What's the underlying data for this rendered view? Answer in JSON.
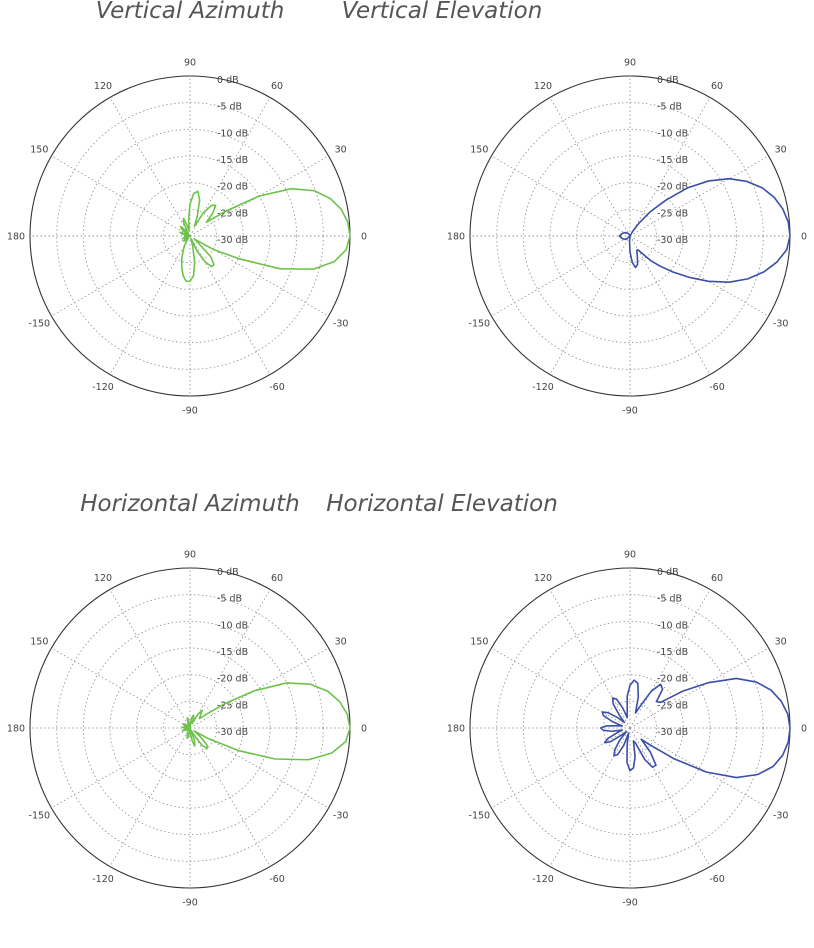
{
  "chart_data": [
    {
      "type": "polar",
      "title": "Vertical Azimuth",
      "color": "#6cc24a",
      "angle_ticks": [
        "0",
        "30",
        "60",
        "90",
        "120",
        "150",
        "180",
        "-150",
        "-120",
        "-90",
        "-60",
        "-30"
      ],
      "radial_ticks": [
        "0 dB",
        "-5 dB",
        "-10 dB",
        "-15 dB",
        "-20 dB",
        "-25 dB",
        "-30 dB"
      ],
      "r_range_db": [
        -30,
        0
      ],
      "series": [
        {
          "angle_deg": [
            0,
            5,
            10,
            15,
            20,
            25,
            30,
            35,
            40,
            45,
            50,
            55,
            60,
            65,
            70,
            75,
            80,
            85,
            90,
            95,
            100,
            105,
            110,
            115,
            120,
            125,
            130,
            135,
            140,
            145,
            150,
            155,
            160,
            165,
            170,
            175,
            180,
            -175,
            -170,
            -165,
            -160,
            -155,
            -150,
            -145,
            -140,
            -135,
            -130,
            -125,
            -120,
            -115,
            -110,
            -105,
            -100,
            -95,
            -90,
            -85,
            -80,
            -75,
            -70,
            -65,
            -60,
            -55,
            -50,
            -45,
            -40,
            -35,
            -30,
            -25,
            -20,
            -15,
            -10,
            -5,
            0
          ],
          "gain_db": [
            0,
            -0.3,
            -1.2,
            -2.8,
            -5.2,
            -9,
            -15,
            -22,
            -26,
            -24,
            -22.5,
            -23,
            -25,
            -28,
            -26,
            -23,
            -21.5,
            -22,
            -24,
            -27,
            -29,
            -28,
            -26.5,
            -27,
            -29,
            -29.5,
            -28.5,
            -27.5,
            -28,
            -29.5,
            -30,
            -29,
            -28,
            -28.5,
            -29.5,
            -30,
            -29,
            -29.5,
            -30,
            -29,
            -28.5,
            -29,
            -29.5,
            -29,
            -28.5,
            -29,
            -29.5,
            -29,
            -28,
            -27,
            -25.5,
            -24,
            -22.5,
            -21.5,
            -21.5,
            -22.5,
            -25,
            -28,
            -29.5,
            -27,
            -24.5,
            -23,
            -23,
            -24.5,
            -28,
            -29,
            -25,
            -20,
            -12,
            -6,
            -2.5,
            -0.6,
            0
          ]
        }
      ]
    },
    {
      "type": "polar",
      "title": "Vertical Elevation",
      "color": "#3a4fa8",
      "angle_ticks": [
        "0",
        "30",
        "60",
        "90",
        "120",
        "150",
        "180",
        "-150",
        "-120",
        "-90",
        "-60",
        "-30"
      ],
      "radial_ticks": [
        "0 dB",
        "-5 dB",
        "-10 dB",
        "-15 dB",
        "-20 dB",
        "-25 dB",
        "-30 dB"
      ],
      "r_range_db": [
        -30,
        0
      ],
      "series": [
        {
          "angle_deg": [
            0,
            5,
            10,
            15,
            20,
            25,
            30,
            35,
            40,
            45,
            50,
            55,
            60,
            65,
            70,
            75,
            80,
            85,
            90,
            95,
            100,
            110,
            120,
            140,
            160,
            180,
            -160,
            -140,
            -120,
            -110,
            -100,
            -95,
            -90,
            -85,
            -80,
            -75,
            -70,
            -65,
            -60,
            -55,
            -50,
            -45,
            -40,
            -35,
            -30,
            -25,
            -20,
            -15,
            -10,
            -5,
            0
          ],
          "gain_db": [
            0,
            -0.2,
            -0.9,
            -2,
            -3.6,
            -5.8,
            -8.5,
            -12,
            -16,
            -20.5,
            -24,
            -27,
            -29,
            -30,
            -30,
            -30,
            -30,
            -30,
            -30,
            -30,
            -30,
            -30,
            -29.5,
            -29,
            -28.5,
            -28,
            -28.5,
            -29,
            -30,
            -30,
            -30,
            -29,
            -27,
            -25,
            -24,
            -24.5,
            -26,
            -27,
            -27,
            -26,
            -24,
            -22,
            -19.5,
            -16.5,
            -13,
            -9.5,
            -6.5,
            -4,
            -2,
            -0.5,
            0
          ]
        }
      ]
    },
    {
      "type": "polar",
      "title": "Horizontal Azimuth",
      "color": "#6cc24a",
      "angle_ticks": [
        "0",
        "30",
        "60",
        "90",
        "120",
        "150",
        "180",
        "-150",
        "-120",
        "-90",
        "-60",
        "-30"
      ],
      "radial_ticks": [
        "0 dB",
        "-5 dB",
        "-10 dB",
        "-15 dB",
        "-20 dB",
        "-25 dB",
        "-30 dB"
      ],
      "r_range_db": [
        -30,
        0
      ],
      "series": [
        {
          "angle_deg": [
            0,
            5,
            10,
            15,
            20,
            25,
            30,
            35,
            40,
            45,
            50,
            55,
            60,
            65,
            70,
            75,
            80,
            85,
            90,
            95,
            100,
            105,
            110,
            120,
            130,
            140,
            150,
            155,
            160,
            165,
            170,
            175,
            180,
            -175,
            -170,
            -165,
            -160,
            -155,
            -150,
            -140,
            -130,
            -120,
            -110,
            -105,
            -100,
            -95,
            -90,
            -85,
            -80,
            -75,
            -70,
            -65,
            -60,
            -55,
            -50,
            -45,
            -40,
            -35,
            -30,
            -25,
            -20,
            -15,
            -10,
            -5,
            0
          ],
          "gain_db": [
            0,
            -0.4,
            -1.5,
            -3.3,
            -6,
            -10,
            -16,
            -22,
            -26,
            -27.5,
            -27,
            -26,
            -27,
            -29,
            -28,
            -27.5,
            -28,
            -29.5,
            -30,
            -29.5,
            -28.5,
            -28,
            -29,
            -30,
            -29.5,
            -29,
            -28.5,
            -29,
            -29.5,
            -29.5,
            -29,
            -28.5,
            -29,
            -29.5,
            -29.5,
            -29,
            -28.5,
            -29,
            -29.5,
            -30,
            -29.5,
            -29,
            -28.5,
            -28,
            -28.5,
            -29.5,
            -30,
            -29,
            -27.5,
            -26.5,
            -27.5,
            -29.5,
            -28.5,
            -26,
            -25,
            -25.5,
            -27.5,
            -29,
            -26,
            -20,
            -13,
            -7,
            -3,
            -0.7,
            0
          ]
        }
      ]
    },
    {
      "type": "polar",
      "title": "Horizontal Elevation",
      "color": "#3a4fa8",
      "angle_ticks": [
        "0",
        "30",
        "60",
        "90",
        "120",
        "150",
        "180",
        "-150",
        "-120",
        "-90",
        "-60",
        "-30"
      ],
      "radial_ticks": [
        "0 dB",
        "-5 dB",
        "-10 dB",
        "-15 dB",
        "-20 dB",
        "-25 dB",
        "-30 dB"
      ],
      "r_range_db": [
        -30,
        0
      ],
      "series": [
        {
          "angle_deg": [
            0,
            5,
            10,
            15,
            20,
            25,
            30,
            35,
            40,
            45,
            50,
            55,
            60,
            65,
            70,
            75,
            80,
            85,
            90,
            95,
            100,
            105,
            110,
            115,
            120,
            125,
            130,
            135,
            140,
            145,
            150,
            155,
            160,
            165,
            170,
            175,
            180,
            -175,
            -170,
            -165,
            -160,
            -155,
            -150,
            -145,
            -140,
            -135,
            -130,
            -125,
            -120,
            -115,
            -110,
            -105,
            -100,
            -95,
            -90,
            -85,
            -80,
            -75,
            -70,
            -65,
            -60,
            -55,
            -50,
            -45,
            -40,
            -35,
            -30,
            -25,
            -20,
            -15,
            -10,
            -5,
            0
          ],
          "gain_db": [
            0,
            -0.3,
            -1.2,
            -2.6,
            -4.8,
            -8,
            -13,
            -18,
            -22.5,
            -23,
            -20.5,
            -20,
            -22,
            -25.5,
            -27,
            -24,
            -21.5,
            -21,
            -22,
            -24,
            -27,
            -28,
            -26,
            -24,
            -23.5,
            -24.5,
            -27,
            -28.5,
            -27,
            -25,
            -24,
            -24.5,
            -26.5,
            -28.5,
            -27.5,
            -25.5,
            -24.5,
            -25,
            -26.5,
            -28.5,
            -27.5,
            -25.5,
            -24.5,
            -25.5,
            -28,
            -29,
            -27,
            -25,
            -24,
            -24.5,
            -26.5,
            -29,
            -27,
            -23.5,
            -22,
            -22.5,
            -24.5,
            -27.5,
            -27,
            -23.5,
            -21.5,
            -21.5,
            -24,
            -27,
            -25,
            -20,
            -13.5,
            -8,
            -4.5,
            -2.2,
            -0.9,
            -0.2,
            0
          ]
        }
      ]
    }
  ]
}
